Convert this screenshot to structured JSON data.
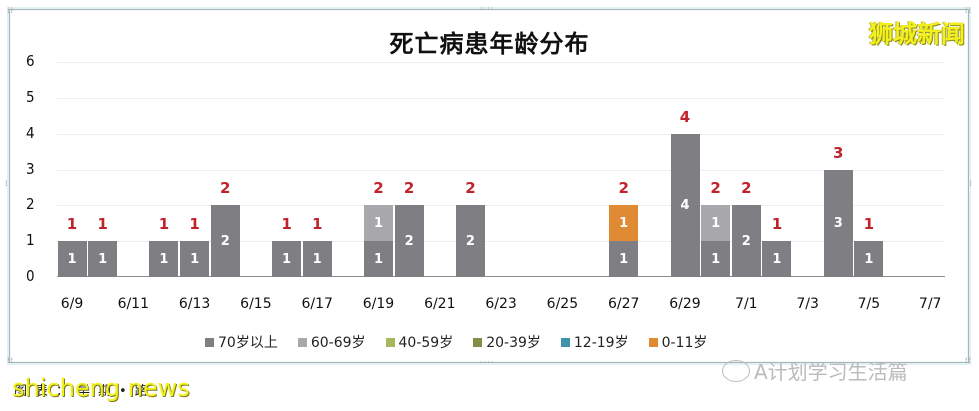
{
  "header": {
    "title": "死亡病患年龄分布",
    "watermark_top": "狮城新闻"
  },
  "footer": {
    "source_label": "图表：早期•路",
    "watermark_bottom": "shicheng news",
    "wechat_account": "A计划学习生活篇"
  },
  "colors": {
    "70_plus": "#7f7e82",
    "60_69": "#a8a7ab",
    "40_59": "#a5b85c",
    "20_39": "#7f8f45",
    "12_19": "#3f94aa",
    "0_11": "#e08a33",
    "total_label": "#c0232b"
  },
  "chart_data": {
    "type": "bar",
    "stacked": true,
    "title": "死亡病患年龄分布",
    "xlabel": "",
    "ylabel": "",
    "ylim": [
      0,
      6
    ],
    "yticks": [
      0,
      1,
      2,
      3,
      4,
      5,
      6
    ],
    "grid": true,
    "legend_position": "bottom",
    "categories": [
      "6/9",
      "6/10",
      "6/11",
      "6/12",
      "6/13",
      "6/14",
      "6/15",
      "6/16",
      "6/17",
      "6/18",
      "6/19",
      "6/20",
      "6/21",
      "6/22",
      "6/23",
      "6/24",
      "6/25",
      "6/26",
      "6/27",
      "6/28",
      "6/29",
      "6/30",
      "7/1",
      "7/2",
      "7/3",
      "7/4",
      "7/5",
      "7/6",
      "7/7"
    ],
    "xtick_labels": [
      "6/9",
      "6/11",
      "6/13",
      "6/15",
      "6/17",
      "6/19",
      "6/21",
      "6/23",
      "6/25",
      "6/27",
      "6/29",
      "7/1",
      "7/3",
      "7/5",
      "7/7"
    ],
    "series": [
      {
        "name": "70岁以上",
        "color": "#7f7e82",
        "values": [
          1,
          1,
          0,
          1,
          1,
          2,
          0,
          1,
          1,
          0,
          1,
          2,
          0,
          2,
          0,
          0,
          0,
          0,
          1,
          0,
          4,
          1,
          2,
          1,
          0,
          3,
          1,
          0,
          0
        ]
      },
      {
        "name": "60-69岁",
        "color": "#a8a7ab",
        "values": [
          0,
          0,
          0,
          0,
          0,
          0,
          0,
          0,
          0,
          0,
          1,
          0,
          0,
          0,
          0,
          0,
          0,
          0,
          0,
          0,
          0,
          1,
          0,
          0,
          0,
          0,
          0,
          0,
          0
        ]
      },
      {
        "name": "40-59岁",
        "color": "#a5b85c",
        "values": [
          0,
          0,
          0,
          0,
          0,
          0,
          0,
          0,
          0,
          0,
          0,
          0,
          0,
          0,
          0,
          0,
          0,
          0,
          0,
          0,
          0,
          0,
          0,
          0,
          0,
          0,
          0,
          0,
          0
        ]
      },
      {
        "name": "20-39岁",
        "color": "#7f8f45",
        "values": [
          0,
          0,
          0,
          0,
          0,
          0,
          0,
          0,
          0,
          0,
          0,
          0,
          0,
          0,
          0,
          0,
          0,
          0,
          0,
          0,
          0,
          0,
          0,
          0,
          0,
          0,
          0,
          0,
          0
        ]
      },
      {
        "name": "12-19岁",
        "color": "#3f94aa",
        "values": [
          0,
          0,
          0,
          0,
          0,
          0,
          0,
          0,
          0,
          0,
          0,
          0,
          0,
          0,
          0,
          0,
          0,
          0,
          0,
          0,
          0,
          0,
          0,
          0,
          0,
          0,
          0,
          0,
          0
        ]
      },
      {
        "name": "0-11岁",
        "color": "#e08a33",
        "values": [
          0,
          0,
          0,
          0,
          0,
          0,
          0,
          0,
          0,
          0,
          0,
          0,
          0,
          0,
          0,
          0,
          0,
          0,
          1,
          0,
          0,
          0,
          0,
          0,
          0,
          0,
          0,
          0,
          0
        ]
      }
    ],
    "totals": [
      1,
      1,
      0,
      1,
      1,
      2,
      0,
      1,
      1,
      0,
      2,
      2,
      0,
      2,
      0,
      0,
      0,
      0,
      2,
      0,
      4,
      2,
      2,
      1,
      0,
      3,
      1,
      0,
      0
    ]
  }
}
